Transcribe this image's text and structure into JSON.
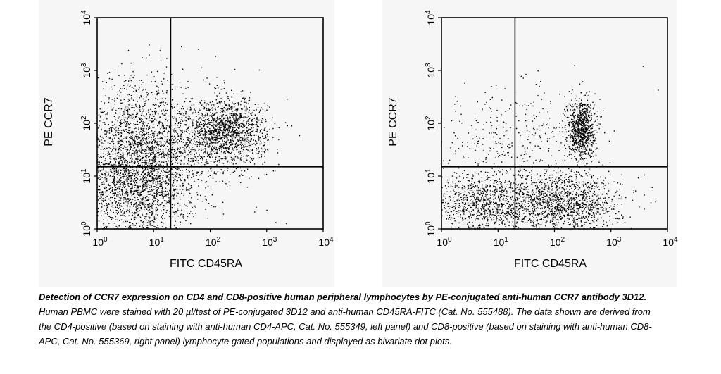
{
  "chart_data": [
    {
      "type": "scatter",
      "title": "",
      "xlabel": "FITC CD45RA",
      "ylabel": "PE CCR7",
      "xscale": "log",
      "yscale": "log",
      "xlim": [
        1,
        10000
      ],
      "ylim": [
        1,
        10000
      ],
      "x_ticks": [
        {
          "base": "10",
          "exp": "0"
        },
        {
          "base": "10",
          "exp": "1"
        },
        {
          "base": "10",
          "exp": "2"
        },
        {
          "base": "10",
          "exp": "3"
        },
        {
          "base": "10",
          "exp": "4"
        }
      ],
      "y_ticks": [
        {
          "base": "10",
          "exp": "0"
        },
        {
          "base": "10",
          "exp": "1"
        },
        {
          "base": "10",
          "exp": "2"
        },
        {
          "base": "10",
          "exp": "3"
        },
        {
          "base": "10",
          "exp": "4"
        }
      ],
      "quadrant_gates": {
        "x": 20,
        "y": 15
      },
      "point_color": "#000000",
      "clusters": [
        {
          "center": [
            5,
            8
          ],
          "spread": [
            0.55,
            0.55
          ],
          "count": 2000
        },
        {
          "center": [
            5,
            50
          ],
          "spread": [
            0.6,
            0.6
          ],
          "count": 1200
        },
        {
          "center": [
            200,
            70
          ],
          "spread": [
            0.35,
            0.3
          ],
          "count": 1300
        },
        {
          "center": [
            50,
            60
          ],
          "spread": [
            0.55,
            0.45
          ],
          "count": 250
        },
        {
          "center": [
            150,
            8
          ],
          "spread": [
            0.7,
            0.6
          ],
          "count": 40
        }
      ]
    },
    {
      "type": "scatter",
      "title": "",
      "xlabel": "FITC CD45RA",
      "ylabel": "PE CCR7",
      "xscale": "log",
      "yscale": "log",
      "xlim": [
        1,
        10000
      ],
      "ylim": [
        1,
        10000
      ],
      "x_ticks": [
        {
          "base": "10",
          "exp": "0"
        },
        {
          "base": "10",
          "exp": "1"
        },
        {
          "base": "10",
          "exp": "2"
        },
        {
          "base": "10",
          "exp": "3"
        },
        {
          "base": "10",
          "exp": "4"
        }
      ],
      "y_ticks": [
        {
          "base": "10",
          "exp": "0"
        },
        {
          "base": "10",
          "exp": "1"
        },
        {
          "base": "10",
          "exp": "2"
        },
        {
          "base": "10",
          "exp": "3"
        },
        {
          "base": "10",
          "exp": "4"
        }
      ],
      "quadrant_gates": {
        "x": 20,
        "y": 15
      },
      "point_color": "#000000",
      "clusters": [
        {
          "center": [
            300,
            80
          ],
          "spread": [
            0.12,
            0.3
          ],
          "count": 800
        },
        {
          "center": [
            6,
            3
          ],
          "spread": [
            0.45,
            0.3
          ],
          "count": 900
        },
        {
          "center": [
            150,
            3
          ],
          "spread": [
            0.5,
            0.28
          ],
          "count": 1300
        },
        {
          "center": [
            10,
            40
          ],
          "spread": [
            0.55,
            0.55
          ],
          "count": 250
        },
        {
          "center": [
            80,
            40
          ],
          "spread": [
            0.6,
            0.6
          ],
          "count": 120
        }
      ]
    }
  ],
  "caption": {
    "bold_text": "Detection of CCR7 expression on CD4 and CD8-positive human peripheral lymphocytes by PE-conjugated anti-human CCR7 antibody 3D12.",
    "body_text": " Human PBMC were stained with 20 µl/test of PE-conjugated 3D12 and anti-human CD45RA-FITC (Cat. No. 555488). The data shown are derived from the CD4-positive (based on staining with anti-human CD4-APC, Cat. No. 555349, left panel) and CD8-positive (based on staining with anti-human CD8-APC, Cat. No. 555369, right panel) lymphocyte gated populations and displayed as bivariate dot plots."
  }
}
